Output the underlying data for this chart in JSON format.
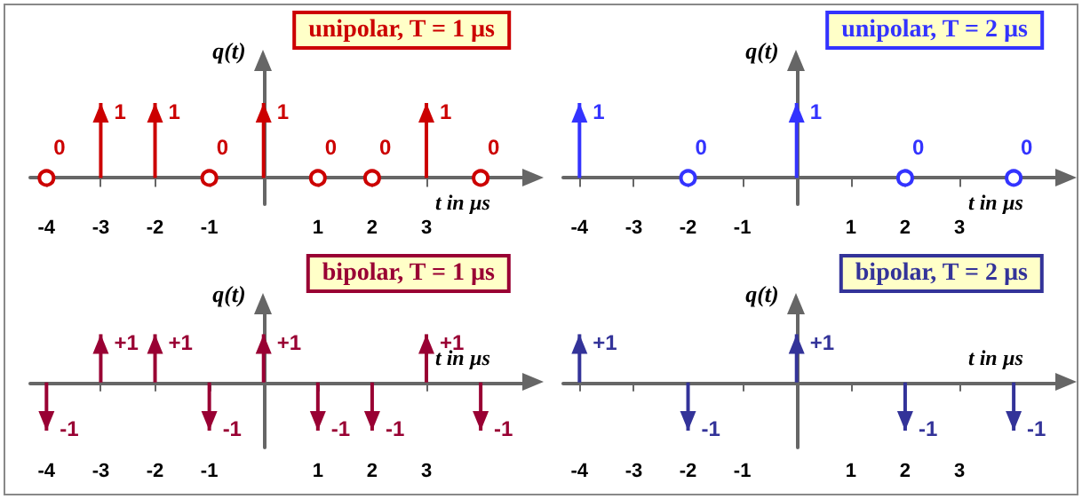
{
  "chart_data": [
    {
      "type": "lollipop",
      "title": "unipolar, T = 1 µs",
      "xlabel": "t in µs",
      "ylabel": "q(t)",
      "x": [
        -4,
        -3,
        -2,
        -1,
        0,
        1,
        2,
        3,
        4
      ],
      "series": [
        {
          "color": "#cc0000",
          "values": [
            0,
            1,
            1,
            0,
            1,
            0,
            0,
            1,
            0
          ],
          "value_labels": [
            "0",
            "1",
            "1",
            "0",
            "1",
            "0",
            "0",
            "1",
            "0"
          ]
        }
      ],
      "xlim": [
        -4.3,
        4.8
      ],
      "xticks": [
        -4,
        -3,
        -2,
        -1,
        1,
        2,
        3
      ],
      "tick_labels": "x"
    },
    {
      "type": "lollipop",
      "title": "unipolar, T = 2 µs",
      "xlabel": "t in µs",
      "ylabel": "q(t)",
      "x": [
        -4,
        -2,
        0,
        2,
        4
      ],
      "series": [
        {
          "color": "#3333ff",
          "values": [
            1,
            0,
            1,
            0,
            0
          ],
          "value_labels": [
            "1",
            "0",
            "1",
            "0",
            "0"
          ]
        }
      ],
      "xlim": [
        -4.3,
        4.8
      ],
      "xticks": [
        -4,
        -3,
        -2,
        -1,
        1,
        2,
        3
      ],
      "tick_labels": "x"
    },
    {
      "type": "lollipop",
      "title": "bipolar, T = 1 µs",
      "xlabel": "t in µs",
      "ylabel": "q(t)",
      "x": [
        -4,
        -3,
        -2,
        -1,
        0,
        1,
        2,
        3,
        4
      ],
      "series": [
        {
          "color": "#990033",
          "values": [
            -1,
            1,
            1,
            -1,
            1,
            -1,
            -1,
            1,
            -1
          ],
          "value_labels": [
            "-1",
            "+1",
            "+1",
            "-1",
            "+1",
            "-1",
            "-1",
            "+1",
            "-1"
          ]
        }
      ],
      "xlim": [
        -4.3,
        4.8
      ],
      "xticks": [
        -4,
        -3,
        -2,
        -1,
        1,
        2,
        3
      ],
      "tick_labels": "x"
    },
    {
      "type": "lollipop",
      "title": "bipolar, T = 2 µs",
      "xlabel": "t in µs",
      "ylabel": "q(t)",
      "x": [
        -4,
        -2,
        0,
        2,
        4
      ],
      "series": [
        {
          "color": "#333399",
          "values": [
            1,
            -1,
            1,
            -1,
            -1
          ],
          "value_labels": [
            "+1",
            "-1",
            "+1",
            "-1",
            "-1"
          ]
        }
      ],
      "xlim": [
        -4.3,
        4.8
      ],
      "xticks": [
        -4,
        -3,
        -2,
        -1,
        1,
        2,
        3
      ],
      "tick_labels": "x"
    }
  ]
}
